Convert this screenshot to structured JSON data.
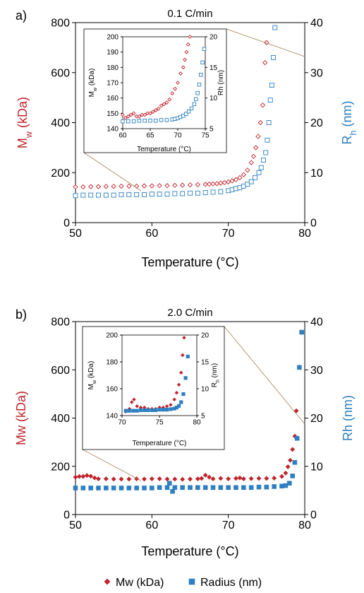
{
  "chart_data": [
    {
      "type": "scatter",
      "panel_label": "a)",
      "title": "0.1 C/min",
      "xlabel": "Temperature (°C)",
      "ylabel_left": {
        "main": "M",
        "sub": "w",
        "rest": " (kDa)"
      },
      "ylabel_right": {
        "main": "R",
        "sub": "h",
        "rest": " (nm)"
      },
      "xlim": [
        50,
        80
      ],
      "xticks": [
        "50",
        "60",
        "70",
        "80"
      ],
      "ylim_left": [
        0,
        800
      ],
      "yticks_left": [
        "0",
        "200",
        "400",
        "600",
        "800"
      ],
      "ylim_right": [
        0,
        40
      ],
      "yticks_right": [
        "0",
        "10",
        "20",
        "30",
        "40"
      ],
      "marker_style": "open",
      "colors": {
        "mw": "#c0232b",
        "rh": "#2e7fc2"
      },
      "series": [
        {
          "axis": "left",
          "color": "mw",
          "marker": "diamond",
          "x": [
            50,
            51,
            52,
            53,
            54,
            55,
            56,
            57,
            58,
            59,
            60,
            61,
            62,
            63,
            64,
            65,
            66,
            67,
            67.5,
            68,
            68.5,
            69,
            69.5,
            70,
            70.5,
            71,
            71.5,
            72,
            72.5,
            73,
            73.3,
            73.6,
            73.9,
            74.2,
            74.5,
            74.8,
            75
          ],
          "y": [
            143,
            143,
            144,
            144,
            145,
            145,
            146,
            146,
            146,
            147,
            147,
            148,
            148,
            149,
            150,
            151,
            152,
            153,
            154,
            155,
            156,
            158,
            160,
            163,
            167,
            172,
            180,
            192,
            210,
            240,
            265,
            300,
            345,
            400,
            470,
            640,
            720
          ]
        },
        {
          "axis": "right",
          "color": "rh",
          "marker": "square",
          "x": [
            50,
            51,
            52,
            53,
            54,
            55,
            56,
            57,
            58,
            59,
            60,
            61,
            62,
            63,
            64,
            65,
            66,
            67,
            68,
            69,
            70,
            70.5,
            71,
            71.5,
            72,
            72.5,
            73,
            73.5,
            74,
            74.3,
            74.6,
            74.9,
            75.1,
            75.3,
            75.5,
            75.7,
            75.9,
            76.1
          ],
          "y": [
            5.4,
            5.5,
            5.5,
            5.5,
            5.5,
            5.5,
            5.6,
            5.6,
            5.6,
            5.6,
            5.7,
            5.7,
            5.7,
            5.8,
            5.8,
            5.9,
            5.9,
            6,
            6.1,
            6.2,
            6.4,
            6.6,
            6.8,
            7,
            7.3,
            7.7,
            8.2,
            9,
            10,
            11,
            12.5,
            14,
            16.5,
            20,
            24.5,
            27.5,
            33,
            39
          ]
        }
      ],
      "inset": {
        "xlim": [
          60,
          75
        ],
        "xticks": [
          "60",
          "65",
          "70",
          "75"
        ],
        "ylim_left": [
          140,
          200
        ],
        "yticks_left": [
          "140",
          "150",
          "160",
          "170",
          "180",
          "190",
          "200"
        ],
        "ylim_right": [
          5,
          20
        ],
        "yticks_right": [
          "5",
          "10",
          "15",
          "20"
        ],
        "xlabel": "Temperature (°C)",
        "ylabel_left": {
          "main": "M",
          "sub": "w",
          "rest": " (kDa)"
        },
        "ylabel_right": {
          "main": "Rh (nm)"
        },
        "series": [
          {
            "axis": "left",
            "color": "mw",
            "marker": "diamond",
            "x": [
              60,
              60.5,
              61,
              61.5,
              62,
              62.5,
              63,
              63.5,
              64,
              64.5,
              65,
              65.5,
              66,
              66.5,
              67,
              67.5,
              68,
              68.5,
              69,
              69.5,
              70,
              70.5,
              71,
              71.3,
              71.6,
              71.9,
              72.2
            ],
            "y": [
              149,
              147,
              148,
              149,
              150,
              148,
              148,
              149,
              149,
              150,
              150,
              151,
              152,
              153,
              155,
              156,
              157,
              159,
              163,
              166,
              170,
              176,
              180,
              185,
              190,
              195,
              200
            ]
          },
          {
            "axis": "right",
            "color": "rh",
            "marker": "square",
            "x": [
              60,
              61,
              62,
              63,
              64,
              65,
              66,
              67,
              68,
              69,
              69.5,
              70,
              70.5,
              71,
              71.5,
              72,
              72.5,
              73,
              73.3,
              73.6,
              73.9,
              74.2,
              74.5,
              74.8
            ],
            "y": [
              6.2,
              6.2,
              6.2,
              6.3,
              6.3,
              6.3,
              6.3,
              6.4,
              6.4,
              6.5,
              6.6,
              6.7,
              6.9,
              7.1,
              7.4,
              7.8,
              8.3,
              9,
              9.8,
              10.8,
              12.2,
              13.8,
              15.8,
              18
            ]
          }
        ]
      }
    },
    {
      "type": "scatter",
      "panel_label": "b)",
      "title": "2.0 C/min",
      "xlabel": "Temperature (°C)",
      "ylabel_left": {
        "main": "Mw (kDa)"
      },
      "ylabel_right": {
        "main": "Rh (nm)"
      },
      "xlim": [
        50,
        80
      ],
      "xticks": [
        "50",
        "60",
        "70",
        "80"
      ],
      "ylim_left": [
        0,
        800
      ],
      "yticks_left": [
        "0",
        "200",
        "400",
        "600",
        "800"
      ],
      "ylim_right": [
        0,
        40
      ],
      "yticks_right": [
        "0",
        "10",
        "20",
        "30",
        "40"
      ],
      "marker_style": "filled",
      "colors": {
        "mw": "#c0232b",
        "rh": "#2e7fc2"
      },
      "series": [
        {
          "name": "Mw (kDa)",
          "axis": "left",
          "color": "mw",
          "marker": "diamond",
          "x": [
            50,
            50.5,
            51,
            51.5,
            52,
            52.5,
            53,
            54,
            55,
            56,
            57,
            58,
            59,
            60,
            61,
            62,
            63,
            64,
            65,
            66,
            66.5,
            67,
            67.5,
            68,
            69,
            70,
            71,
            71.5,
            72,
            73,
            74,
            75,
            76,
            77,
            77.5,
            77.8,
            78.1,
            78.4,
            78.7,
            78.9
          ],
          "y": [
            155,
            158,
            158,
            162,
            159,
            152,
            148,
            148,
            147,
            147,
            147,
            148,
            147,
            148,
            148,
            147,
            147,
            146,
            147,
            148,
            150,
            163,
            155,
            148,
            150,
            148,
            150,
            152,
            148,
            149,
            150,
            150,
            151,
            158,
            172,
            198,
            225,
            270,
            325,
            430
          ]
        },
        {
          "name": "Radius (nm)",
          "axis": "right",
          "color": "rh",
          "marker": "square",
          "x": [
            50,
            51,
            52,
            53,
            54,
            55,
            56,
            57,
            58,
            59,
            60,
            61,
            62,
            62.3,
            62.7,
            63,
            64,
            65,
            66,
            67,
            68,
            69,
            70,
            71,
            72,
            73,
            74,
            75,
            76,
            77,
            77.5,
            78,
            78.4,
            78.7,
            79,
            79.3,
            79.6
          ],
          "y": [
            5.5,
            5.5,
            5.5,
            5.5,
            5.5,
            5.5,
            5.5,
            5.5,
            5.5,
            5.5,
            5.5,
            5.6,
            5.6,
            6.5,
            4.8,
            5.6,
            5.6,
            5.6,
            5.6,
            5.6,
            5.6,
            5.6,
            5.6,
            5.6,
            5.6,
            5.6,
            5.7,
            5.7,
            5.8,
            5.9,
            6,
            6.5,
            8,
            10.8,
            15.8,
            30.5,
            37.8
          ]
        }
      ],
      "inset": {
        "xlim": [
          70,
          80
        ],
        "xticks": [
          "70",
          "75",
          "80"
        ],
        "ylim_left": [
          140,
          200
        ],
        "yticks_left": [
          "140",
          "160",
          "180",
          "200"
        ],
        "ylim_right": [
          5,
          20
        ],
        "yticks_right": [
          "5",
          "10",
          "15",
          "20"
        ],
        "xlabel": "Temperature (°C)",
        "ylabel_left": {
          "main": "M",
          "sub": "w",
          "rest": " (kDa)"
        },
        "ylabel_right": {
          "main": "R",
          "sub": "h",
          "rest": " (nm)"
        },
        "series": [
          {
            "axis": "left",
            "color": "mw",
            "marker": "diamond",
            "x": [
              70.5,
              71,
              71.3,
              71.6,
              72,
              72.5,
              73,
              73.5,
              74,
              74.5,
              75,
              75.5,
              76,
              76.5,
              77,
              77.3,
              77.6,
              77.9,
              78.1,
              78.3
            ],
            "y": [
              143,
              145,
              150,
              152,
              147,
              146,
              146,
              145,
              145,
              145,
              146,
              146,
              147,
              148,
              152,
              157,
              163,
              172,
              185,
              198
            ]
          },
          {
            "axis": "right",
            "color": "rh",
            "marker": "square",
            "x": [
              70.5,
              71,
              71.5,
              72,
              72.5,
              73,
              73.5,
              74,
              74.5,
              75,
              75.5,
              76,
              76.5,
              77,
              77.3,
              77.6,
              77.9,
              78.2,
              78.5,
              78.8
            ],
            "y": [
              5.9,
              5.9,
              5.9,
              5.9,
              6,
              6,
              6,
              6,
              6,
              6.1,
              6.1,
              6.1,
              6.2,
              6.3,
              6.5,
              6.8,
              7.5,
              9,
              12,
              16
            ]
          }
        ]
      }
    }
  ],
  "legend": [
    {
      "label": "Mw (kDa)",
      "marker": "diamond",
      "color": "#c0232b"
    },
    {
      "label": "Radius (nm)",
      "marker": "square",
      "color": "#2e7fc2"
    }
  ]
}
